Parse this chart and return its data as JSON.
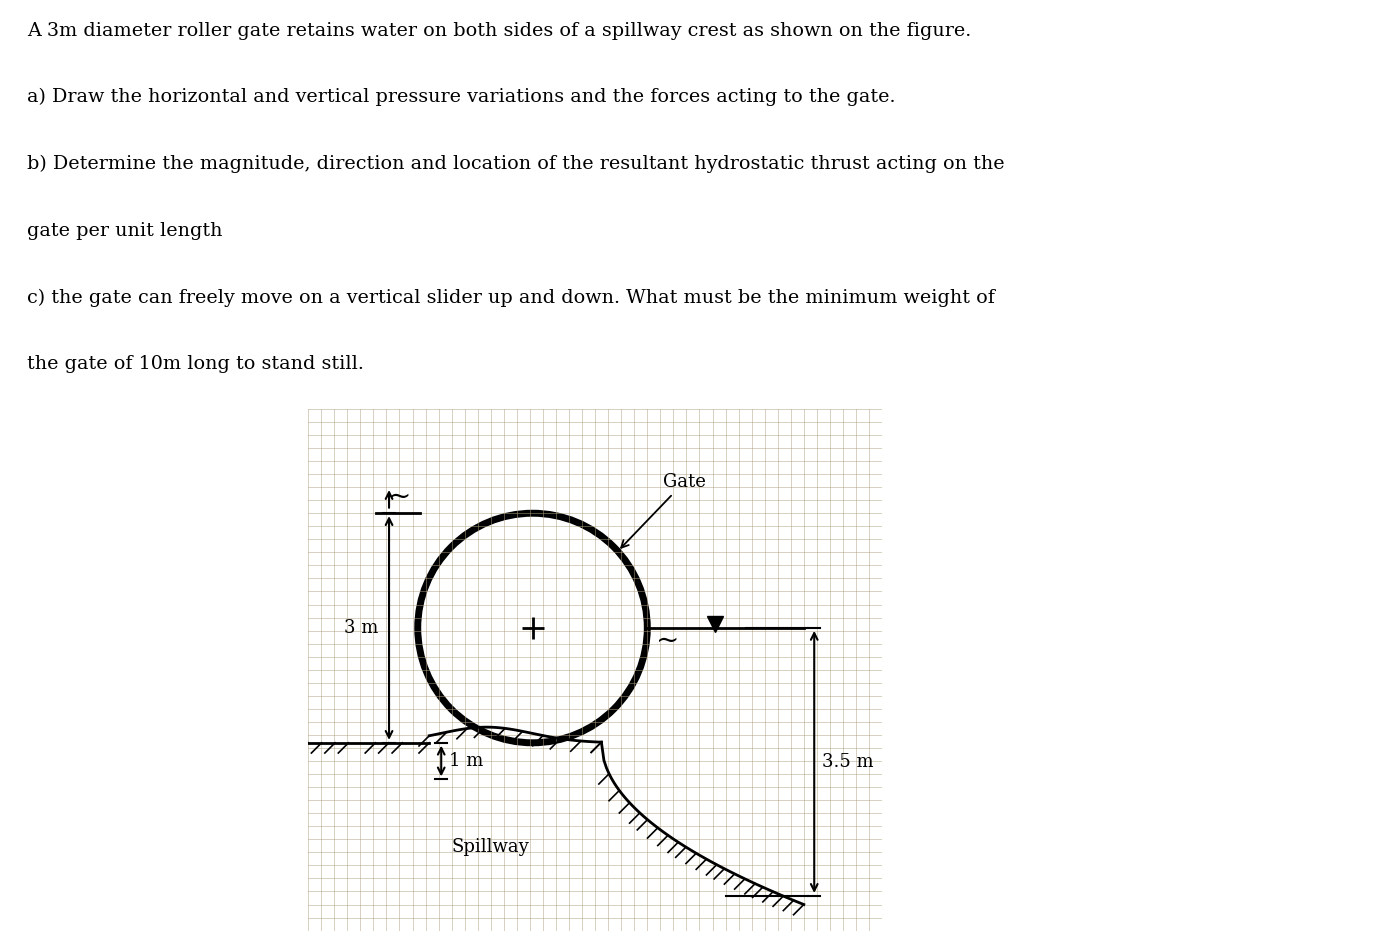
{
  "title_lines": [
    "A 3m diameter roller gate retains water on both sides of a spillway crest as shown on the figure.",
    "a) Draw the horizontal and vertical pressure variations and the forces acting to the gate.",
    "b) Determine the magnitude, direction and location of the resultant hydrostatic thrust acting on the",
    "gate per unit length",
    "c) the gate can freely move on a vertical slider up and down. What must be the minimum weight of",
    "the gate of 10m long to stand still."
  ],
  "bg_color": "#c8b89a",
  "grid_color": "#b0a080",
  "circle_lw": 5.0,
  "dim_3m": "3 m",
  "dim_1m": "1 m",
  "dim_35m": "3.5 m",
  "gate_label": "Gate",
  "spillway_label": "Spillway"
}
